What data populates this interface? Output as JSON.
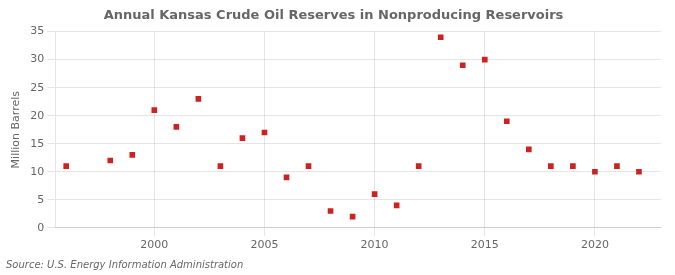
{
  "chart_data": {
    "type": "scatter",
    "title": "Annual Kansas Crude Oil Reserves in Nonproducing Reservoirs",
    "ylabel": "Million Barrels",
    "annotation": "Source: U.S. Energy Information Administration",
    "x": [
      1996,
      1998,
      1999,
      2000,
      2001,
      2002,
      2003,
      2004,
      2005,
      2006,
      2007,
      2008,
      2009,
      2010,
      2011,
      2012,
      2013,
      2014,
      2015,
      2016,
      2017,
      2018,
      2019,
      2020,
      2021,
      2022
    ],
    "values": [
      11,
      12,
      13,
      21,
      18,
      23,
      11,
      16,
      17,
      9,
      11,
      3,
      2,
      6,
      4,
      11,
      34,
      29,
      30,
      19,
      14,
      11,
      11,
      10,
      11,
      10
    ],
    "color": "#cc2222",
    "marker": "square",
    "xlim": [
      1995.5,
      2023
    ],
    "ylim": [
      0,
      35
    ],
    "xticks": [
      2000,
      2005,
      2010,
      2015,
      2020
    ],
    "yticks": [
      0,
      5,
      10,
      15,
      20,
      25,
      30,
      35
    ],
    "grid": true
  }
}
